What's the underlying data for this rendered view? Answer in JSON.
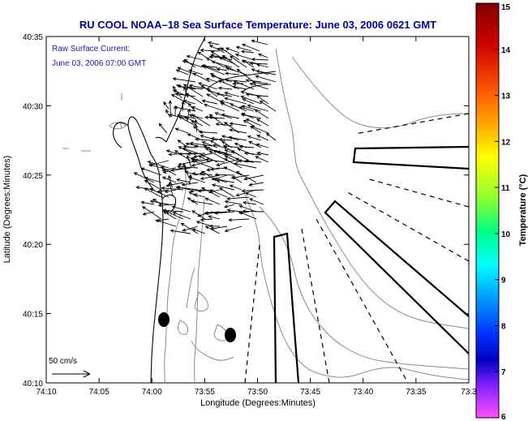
{
  "title": "RU COOL  NOAA–18  Sea Surface Temperature:  June 03, 2006 0621 GMT",
  "current_label": "Raw Surface Current:",
  "current_time": "June 03, 2006 07:00 GMT",
  "scale_label": "50 cm/s",
  "x_axis_label": "Longitude (Degrees:Minutes)",
  "y_axis_label": "Latitude (Degrees:Minutes)",
  "colorbar_label": "Temperature (°C)",
  "colors": {
    "title": "#0000a0",
    "annotation": "#1a1aa0",
    "ink": "#000000",
    "bathymetry": "#8a8a8a"
  },
  "chart_data": {
    "type": "map",
    "x_ticks": [
      "74:10",
      "74:05",
      "74:00",
      "73:55",
      "73:50",
      "73:45",
      "73:40",
      "73:35",
      "73:3"
    ],
    "y_ticks": [
      "40:35",
      "40:30",
      "40:25",
      "40:20",
      "40:15",
      "40:10"
    ],
    "colorbar_ticks": [
      "15",
      "14",
      "13",
      "12",
      "11",
      "10",
      "9",
      "8",
      "7",
      "6"
    ],
    "colorbar_range": [
      6,
      15
    ],
    "colorbar_stops": [
      {
        "offset": 0.0,
        "color": "#800000"
      },
      {
        "offset": 0.1,
        "color": "#d00000"
      },
      {
        "offset": 0.22,
        "color": "#ff6000"
      },
      {
        "offset": 0.3,
        "color": "#ffb000"
      },
      {
        "offset": 0.37,
        "color": "#ffff00"
      },
      {
        "offset": 0.47,
        "color": "#90ff30"
      },
      {
        "offset": 0.55,
        "color": "#00ff80"
      },
      {
        "offset": 0.63,
        "color": "#00ffff"
      },
      {
        "offset": 0.72,
        "color": "#0090ff"
      },
      {
        "offset": 0.8,
        "color": "#0030ff"
      },
      {
        "offset": 0.86,
        "color": "#0000c0"
      },
      {
        "offset": 0.92,
        "color": "#8020ff"
      },
      {
        "offset": 1.0,
        "color": "#ff50ff"
      }
    ]
  }
}
